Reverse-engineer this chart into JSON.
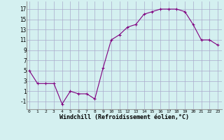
{
  "x": [
    0,
    1,
    2,
    3,
    4,
    5,
    6,
    7,
    8,
    9,
    10,
    11,
    12,
    13,
    14,
    15,
    16,
    17,
    18,
    19,
    20,
    21,
    22,
    23
  ],
  "y": [
    5,
    2.5,
    2.5,
    2.5,
    -1.5,
    1,
    0.5,
    0.5,
    -0.5,
    5.5,
    11,
    12,
    13.5,
    14,
    16,
    16.5,
    17,
    17,
    17,
    16.5,
    14,
    11,
    11,
    10
  ],
  "line_color": "#800080",
  "marker": "+",
  "marker_size": 3,
  "bg_color": "#d4f0f0",
  "grid_color": "#aaaacc",
  "xlabel": "Windchill (Refroidissement éolien,°C)",
  "xlabel_fontsize": 6,
  "ytick_labels": [
    "-1",
    "1",
    "3",
    "5",
    "7",
    "9",
    "11",
    "13",
    "15",
    "17"
  ],
  "yticks": [
    -1,
    1,
    3,
    5,
    7,
    9,
    11,
    13,
    15,
    17
  ],
  "xticks": [
    0,
    1,
    2,
    3,
    4,
    5,
    6,
    7,
    8,
    9,
    10,
    11,
    12,
    13,
    14,
    15,
    16,
    17,
    18,
    19,
    20,
    21,
    22,
    23
  ],
  "ylim": [
    -2.5,
    18.5
  ],
  "xlim": [
    -0.3,
    23.5
  ]
}
